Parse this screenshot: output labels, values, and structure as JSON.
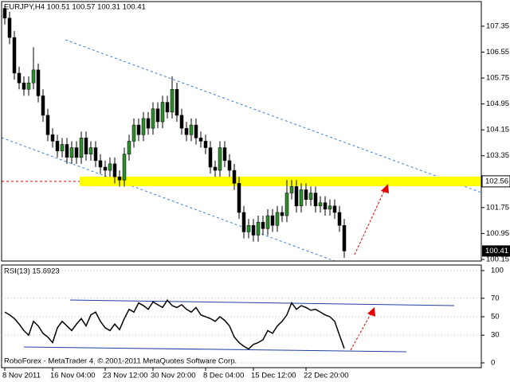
{
  "chart_data": [
    {
      "type": "candlestick",
      "title": "EURJPY,H4  100.51 100.57 100.31 100.41",
      "open": [
        107.9,
        107.6,
        107.0,
        105.9,
        105.6,
        105.4,
        105.6,
        106.0,
        105.2,
        104.6,
        104.0,
        103.8,
        103.5,
        103.7,
        103.3,
        103.6,
        103.3,
        103.9,
        103.4,
        103.6,
        103.2,
        103.0,
        102.9,
        103.1,
        102.7,
        102.6,
        103.4,
        103.8,
        104.3,
        104.0,
        104.5,
        104.2,
        104.8,
        104.4,
        105.0,
        104.7,
        105.4,
        104.6,
        104.2,
        104.0,
        104.3,
        103.9,
        103.8,
        103.6,
        103.0,
        102.9,
        103.6,
        103.2,
        102.9,
        102.5,
        101.6,
        101.0,
        101.2,
        100.9,
        101.3,
        101.1,
        101.5,
        101.2,
        101.6,
        101.5,
        102.2,
        102.4,
        101.8,
        102.3,
        102.0,
        102.2,
        101.8,
        101.9,
        101.7,
        101.8,
        101.6,
        101.2
      ],
      "high": [
        108.0,
        107.8,
        107.2,
        106.1,
        105.8,
        105.8,
        106.7,
        106.2,
        105.4,
        104.8,
        104.2,
        104.0,
        103.9,
        103.9,
        103.8,
        103.8,
        104.1,
        104.1,
        103.8,
        103.8,
        103.4,
        103.2,
        103.3,
        103.3,
        102.9,
        103.6,
        104.0,
        104.5,
        104.5,
        104.7,
        104.7,
        105.0,
        105.0,
        105.2,
        105.2,
        105.8,
        105.6,
        104.8,
        104.4,
        104.5,
        104.5,
        104.1,
        104.0,
        103.8,
        103.2,
        103.8,
        103.8,
        103.4,
        103.1,
        102.7,
        101.8,
        101.4,
        101.4,
        101.5,
        101.5,
        101.7,
        101.7,
        101.8,
        101.8,
        102.6,
        102.6,
        102.6,
        102.5,
        102.5,
        102.4,
        102.4,
        102.1,
        102.1,
        102.0,
        102.0,
        101.8,
        101.4
      ],
      "low": [
        107.4,
        106.8,
        105.7,
        105.4,
        105.2,
        105.2,
        105.4,
        105.0,
        104.4,
        103.8,
        103.6,
        103.3,
        103.3,
        103.1,
        103.1,
        103.1,
        103.1,
        103.2,
        103.2,
        103.0,
        102.8,
        102.7,
        102.7,
        102.5,
        102.4,
        102.4,
        103.2,
        103.6,
        103.8,
        103.8,
        104.0,
        104.0,
        104.2,
        104.2,
        104.5,
        104.5,
        104.4,
        104.0,
        103.8,
        103.8,
        103.7,
        103.6,
        103.4,
        102.8,
        102.7,
        102.7,
        103.0,
        102.7,
        102.3,
        101.4,
        100.8,
        100.8,
        100.7,
        100.7,
        100.9,
        100.9,
        101.0,
        101.0,
        101.3,
        101.3,
        102.0,
        101.6,
        101.6,
        101.8,
        101.8,
        101.6,
        101.6,
        101.5,
        101.5,
        101.4,
        101.0,
        100.2
      ],
      "close": [
        107.6,
        107.0,
        105.9,
        105.6,
        105.4,
        105.6,
        106.0,
        105.2,
        104.6,
        104.0,
        103.8,
        103.5,
        103.7,
        103.3,
        103.6,
        103.3,
        103.9,
        103.4,
        103.6,
        103.2,
        103.0,
        102.9,
        103.1,
        102.7,
        102.6,
        103.4,
        103.8,
        104.3,
        104.0,
        104.5,
        104.2,
        104.8,
        104.4,
        105.0,
        104.7,
        105.4,
        104.6,
        104.2,
        104.0,
        104.3,
        103.9,
        103.8,
        103.6,
        103.0,
        102.9,
        103.6,
        103.2,
        102.9,
        102.5,
        101.6,
        101.0,
        101.2,
        100.9,
        101.3,
        101.1,
        101.5,
        101.2,
        101.6,
        101.5,
        102.2,
        102.4,
        101.8,
        102.3,
        102.0,
        102.2,
        101.8,
        101.9,
        101.7,
        101.8,
        101.6,
        101.2,
        100.41
      ],
      "up_color": "#2e8b2e",
      "down_color": "#000000",
      "ylim": [
        100.1,
        108.11
      ],
      "yticks": [
        100.15,
        100.95,
        101.75,
        103.35,
        104.15,
        104.95,
        105.75,
        106.55,
        107.35
      ],
      "price_labels": [
        102.56,
        100.41
      ],
      "level_color": "#ffff00"
    },
    {
      "type": "line",
      "title": "RSI(13) 15.6923",
      "categories": [
        "8 Nov 2011",
        null,
        null,
        null,
        null,
        null,
        null,
        null,
        null,
        null,
        "16 Nov 04:00",
        null,
        null,
        null,
        null,
        null,
        null,
        null,
        null,
        null,
        null,
        "23 Nov 12:00",
        null,
        null,
        null,
        null,
        null,
        null,
        null,
        null,
        null,
        "30 Nov 20:00",
        null,
        null,
        null,
        null,
        null,
        null,
        null,
        null,
        null,
        null,
        "8 Dec 04:00",
        null,
        null,
        null,
        null,
        null,
        null,
        null,
        null,
        null,
        "15 Dec 12:00",
        null,
        null,
        null,
        null,
        null,
        null,
        null,
        null,
        null,
        null,
        "22 Dec 20:00",
        null,
        null,
        null,
        null,
        null,
        null,
        null,
        null
      ],
      "values": [
        55,
        52,
        48,
        42,
        35,
        30,
        45,
        40,
        32,
        28,
        22,
        38,
        45,
        40,
        35,
        42,
        48,
        40,
        52,
        55,
        45,
        38,
        35,
        42,
        36,
        48,
        58,
        55,
        65,
        62,
        58,
        66,
        63,
        60,
        68,
        62,
        60,
        63,
        58,
        55,
        60,
        52,
        50,
        48,
        45,
        50,
        46,
        40,
        28,
        22,
        18,
        15,
        20,
        22,
        25,
        35,
        32,
        40,
        45,
        52,
        65,
        58,
        62,
        60,
        57,
        58,
        55,
        52,
        50,
        45,
        30,
        15.6923
      ],
      "color": "#000000",
      "ylim": [
        -5.2,
        106
      ],
      "yticks": [
        0,
        30,
        50,
        70,
        100
      ],
      "source": "RoboForex - MetaTrader 4, © 2001-2011 MetaQuotes Software Corp."
    }
  ]
}
